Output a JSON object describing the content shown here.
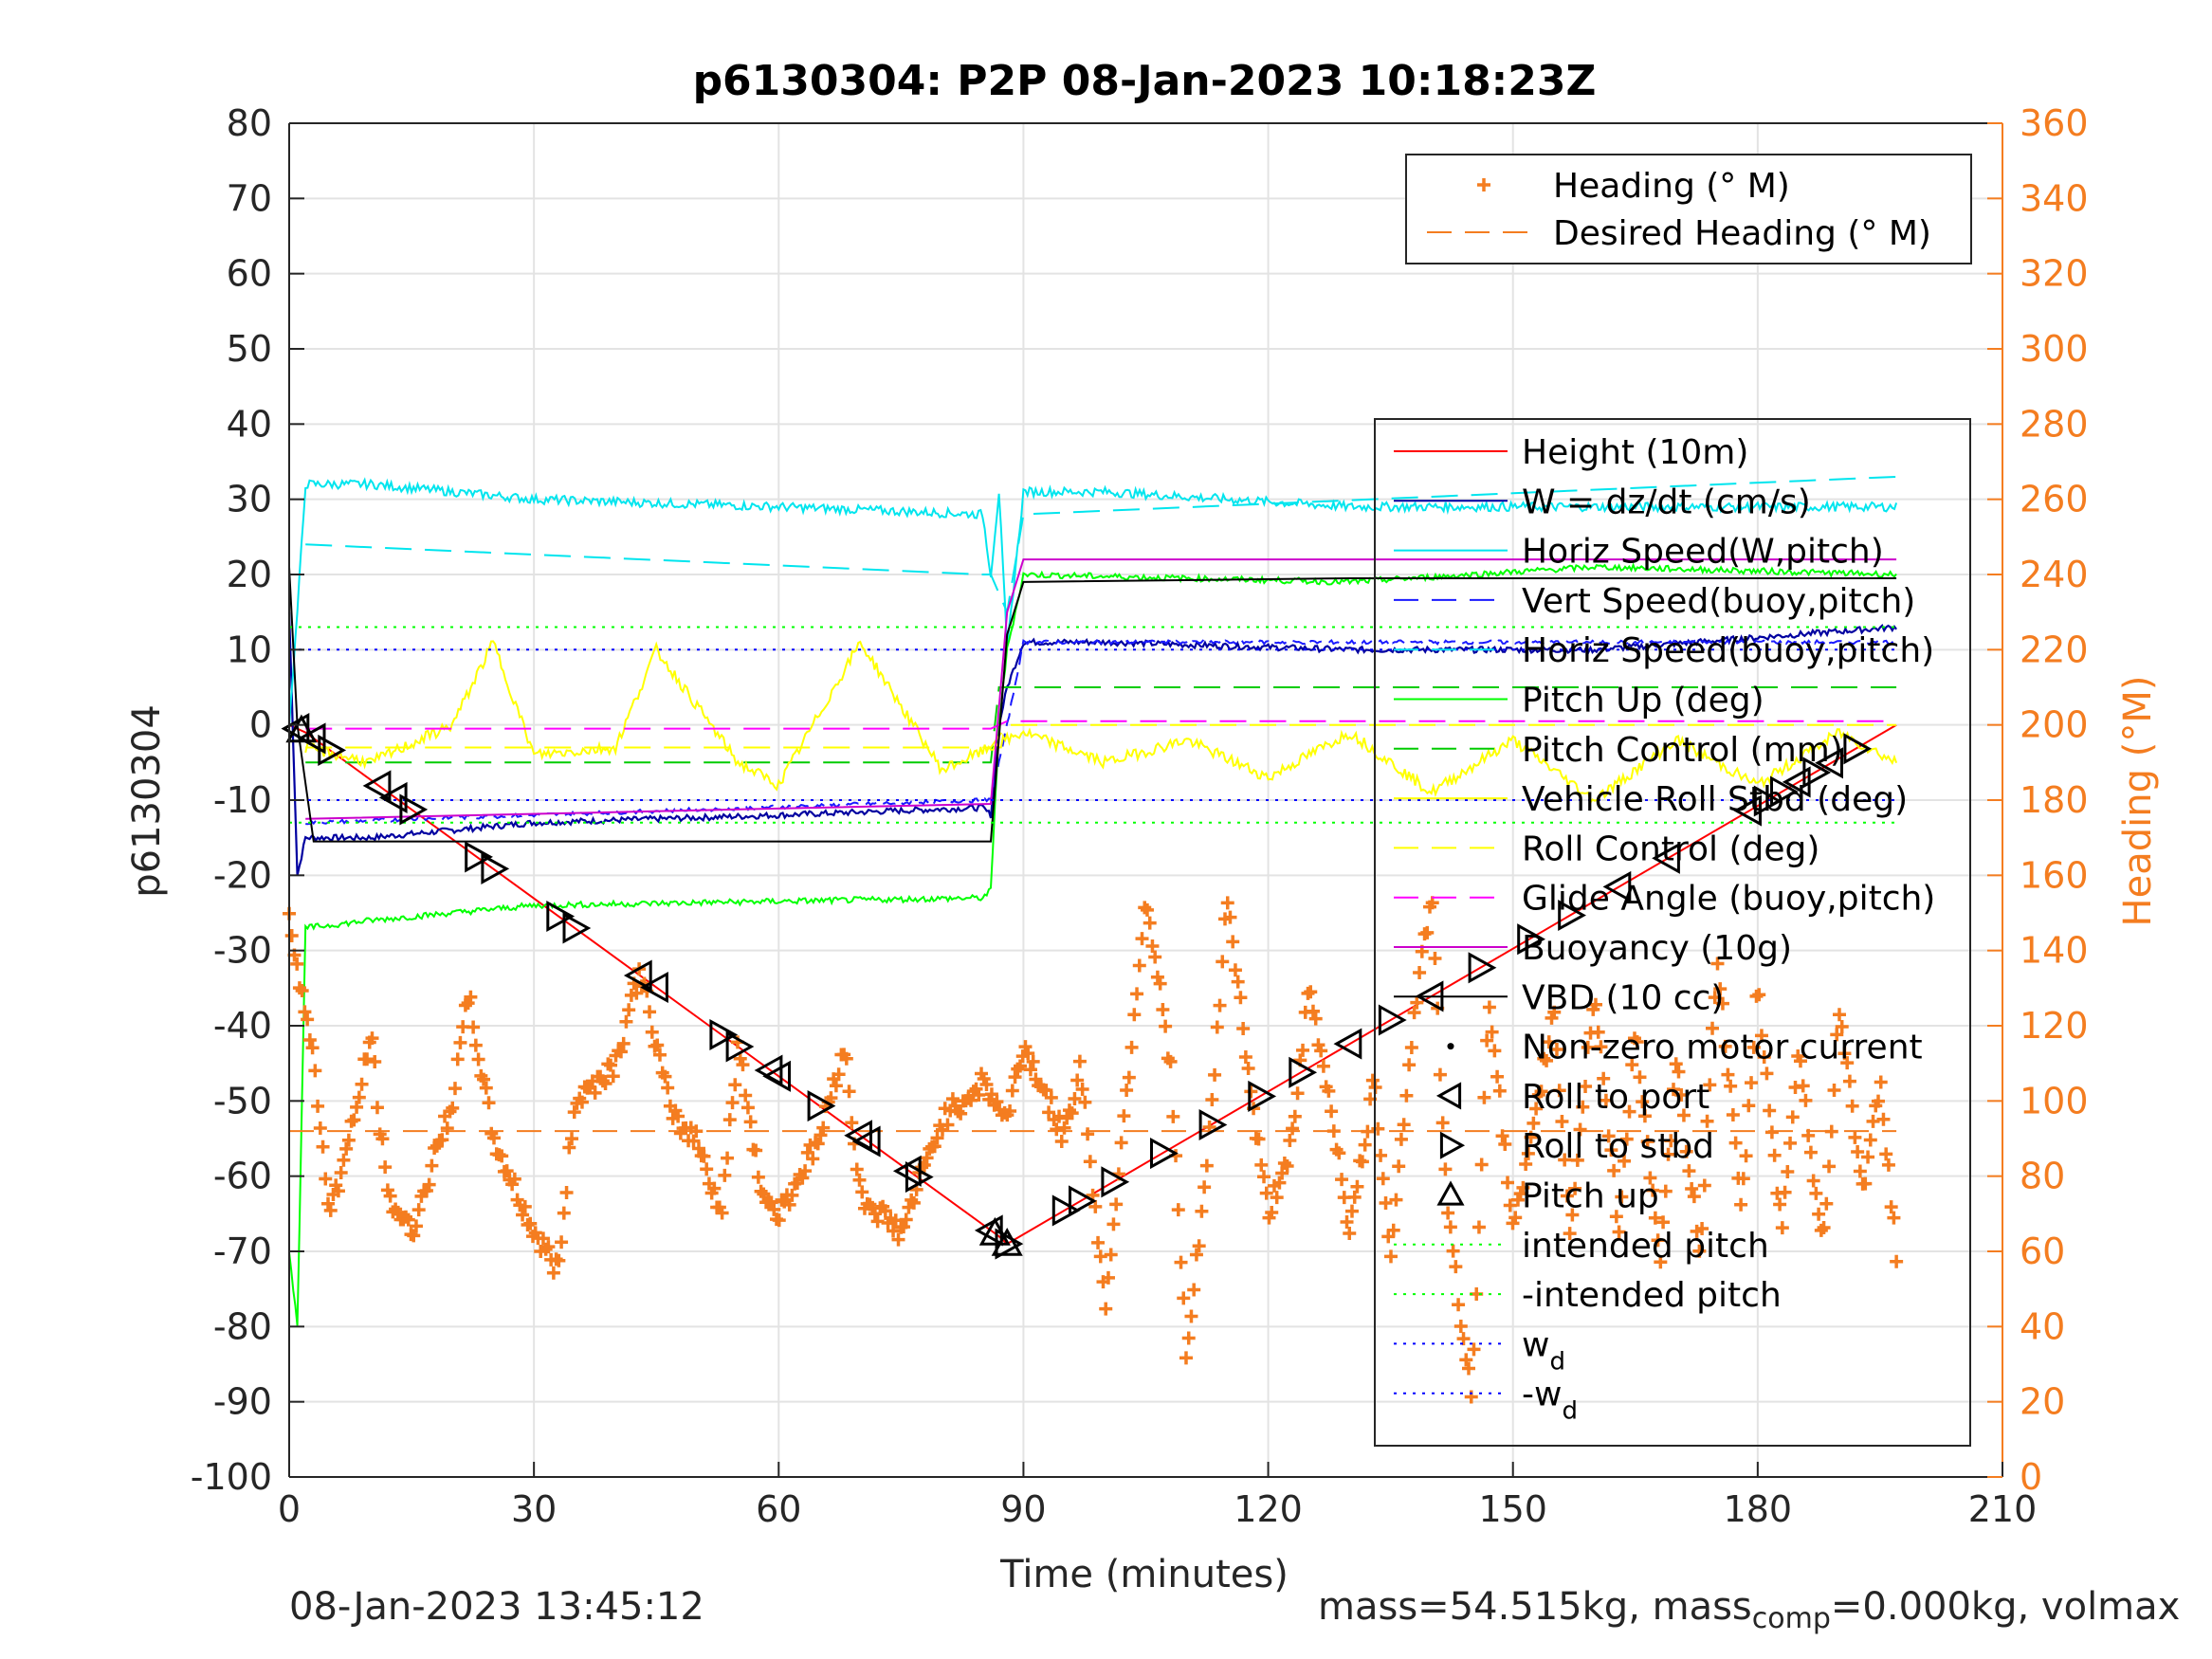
{
  "chart_data": {
    "type": "line",
    "title": "p6130304: P2P 08-Jan-2023 10:18:23Z",
    "xlabel": "Time (minutes)",
    "ylabel_left": "p6130304",
    "ylabel_right": "Heading (°M)",
    "xlim": [
      0,
      210
    ],
    "ylim_left": [
      -100,
      80
    ],
    "ylim_right": [
      0,
      360
    ],
    "xticks": [
      0,
      30,
      60,
      90,
      120,
      150,
      180,
      210
    ],
    "yticks_left": [
      80,
      70,
      60,
      50,
      40,
      30,
      20,
      10,
      0,
      -10,
      -20,
      -30,
      -40,
      -50,
      -60,
      -70,
      -80,
      -90,
      -100
    ],
    "yticks_right": [
      360,
      340,
      320,
      300,
      280,
      260,
      240,
      220,
      200,
      180,
      160,
      140,
      120,
      100,
      80,
      60,
      40,
      20,
      0
    ],
    "grid": true,
    "legend_heading": [
      {
        "name": "Heading (° M)",
        "color": "#f47d20",
        "style": "plus"
      },
      {
        "name": "Desired Heading (° M)",
        "color": "#f47d20",
        "style": "dashed"
      }
    ],
    "legend_main": [
      {
        "name": "Height (10m)",
        "color": "#ff0000",
        "style": "solid"
      },
      {
        "name": "W = dz/dt (cm/s)",
        "color": "#0000a0",
        "style": "solid"
      },
      {
        "name": "Horiz Speed(W,pitch)",
        "color": "#00e5ee",
        "style": "solid"
      },
      {
        "name": "Vert Speed(buoy,pitch)",
        "color": "#1a1aff",
        "style": "dashed"
      },
      {
        "name": "Horiz Speed(buoy,pitch)",
        "color": "#00e5ee",
        "style": "dashed"
      },
      {
        "name": "Pitch Up (deg)",
        "color": "#00ff00",
        "style": "solid"
      },
      {
        "name": "Pitch Control (mm)",
        "color": "#00cc00",
        "style": "dashed"
      },
      {
        "name": "Vehicle Roll Stbd (deg)",
        "color": "#ffff00",
        "style": "solid"
      },
      {
        "name": "Roll Control (deg)",
        "color": "#ffff00",
        "style": "dashed"
      },
      {
        "name": "Glide Angle (buoy,pitch)",
        "color": "#ff00ff",
        "style": "dashed"
      },
      {
        "name": "Buoyancy (10g)",
        "color": "#cc00cc",
        "style": "solid"
      },
      {
        "name": "VBD (10 cc)",
        "color": "#000000",
        "style": "solid"
      },
      {
        "name": "Non-zero motor current",
        "color": "#000000",
        "style": "dot"
      },
      {
        "name": "Roll to port",
        "color": "#000000",
        "style": "tri-left"
      },
      {
        "name": "Roll to stbd",
        "color": "#000000",
        "style": "tri-right"
      },
      {
        "name": "Pitch up",
        "color": "#000000",
        "style": "tri-up"
      },
      {
        "name": "intended pitch",
        "color": "#00ff00",
        "style": "dotted"
      },
      {
        "name": "-intended pitch",
        "color": "#00ff00",
        "style": "dotted"
      },
      {
        "name": "w",
        "sub": "d",
        "color": "#0000ff",
        "style": "dotted"
      },
      {
        "name": "-w",
        "sub": "d",
        "color": "#0000ff",
        "style": "dotted"
      }
    ],
    "series": [
      {
        "name": "Height (10m)",
        "x": [
          0,
          2,
          87,
          88,
          197
        ],
        "y": [
          0,
          -1,
          -68,
          -69,
          0
        ]
      },
      {
        "name": "W = dz/dt (cm/s)",
        "x": [
          0,
          1,
          2,
          10,
          30,
          60,
          85,
          86,
          87,
          88,
          90,
          100,
          130,
          160,
          197
        ],
        "y": [
          15,
          -20,
          -15,
          -15,
          -13,
          -12,
          -11,
          -12,
          0,
          5,
          11,
          11,
          10,
          10,
          13
        ]
      },
      {
        "name": "Horiz Speed(W,pitch)",
        "x": [
          0,
          1,
          2,
          10,
          30,
          60,
          85,
          86,
          87,
          88,
          90,
          100,
          130,
          160,
          197
        ],
        "y": [
          0,
          15,
          32,
          32,
          30,
          29,
          28,
          20,
          31,
          10,
          31,
          31,
          29,
          29,
          29
        ]
      },
      {
        "name": "Vert Speed(buoy,pitch)",
        "x": [
          2,
          85,
          86,
          88,
          90,
          197
        ],
        "y": [
          -13,
          -10,
          -10,
          0,
          11,
          11
        ]
      },
      {
        "name": "Horiz Speed(buoy,pitch)",
        "x": [
          2,
          85,
          86,
          88,
          90,
          197
        ],
        "y": [
          24,
          20,
          20,
          15,
          28,
          33
        ]
      },
      {
        "name": "Pitch Up (deg)",
        "x": [
          0,
          1,
          2,
          10,
          30,
          85,
          86,
          87,
          88,
          90,
          130,
          160,
          197
        ],
        "y": [
          -70,
          -80,
          -27,
          -26,
          -24,
          -23,
          -22,
          0,
          10,
          20,
          19,
          21,
          20
        ]
      },
      {
        "name": "Pitch Control (mm)",
        "x": [
          2,
          86,
          87,
          197
        ],
        "y": [
          -5,
          -5,
          5,
          5
        ]
      },
      {
        "name": "Vehicle Roll Stbd (deg)",
        "x": [
          2,
          10,
          20,
          25,
          30,
          40,
          45,
          55,
          60,
          70,
          80,
          86,
          90,
          100,
          110,
          120,
          130,
          140,
          150,
          160,
          170,
          180,
          190,
          197
        ],
        "y": [
          -3,
          -5,
          0,
          11,
          -4,
          -3,
          10,
          -5,
          -8,
          11,
          -6,
          -3,
          -1,
          -5,
          -2,
          -7,
          -1,
          -9,
          -2,
          -10,
          -2,
          -8,
          -1,
          -5
        ]
      },
      {
        "name": "Roll Control (deg)",
        "x": [
          2,
          86,
          88,
          197
        ],
        "y": [
          -3,
          -3,
          0,
          0
        ]
      },
      {
        "name": "Glide Angle (buoy,pitch)",
        "x": [
          2,
          86,
          88,
          197
        ],
        "y": [
          -0.5,
          -0.5,
          0.5,
          0.5
        ]
      },
      {
        "name": "Buoyancy (10g)",
        "x": [
          2,
          86,
          88,
          90,
          197
        ],
        "y": [
          -12.5,
          -10.5,
          15,
          22,
          22
        ]
      },
      {
        "name": "VBD (10 cc)",
        "x": [
          0,
          1,
          3,
          85,
          86,
          88,
          90,
          130,
          163,
          164,
          197
        ],
        "y": [
          21,
          0,
          -15.5,
          -15.5,
          -15.5,
          12,
          19,
          19.5,
          19.5,
          19.5,
          19.5
        ]
      },
      {
        "name": "Heading (° M)",
        "note": "oscillating about desired heading",
        "x": [
          0,
          3,
          5,
          8,
          10,
          12,
          15,
          20,
          22,
          25,
          30,
          33,
          35,
          40,
          43,
          47,
          50,
          53,
          55,
          58,
          60,
          65,
          68,
          70,
          75,
          80,
          85,
          88,
          90,
          95,
          97,
          100,
          103,
          105,
          108,
          110,
          113,
          115,
          118,
          120,
          123,
          125,
          128,
          130,
          133,
          135,
          138,
          140,
          142,
          145,
          147,
          150,
          152,
          155,
          157,
          160,
          163,
          165,
          168,
          170,
          173,
          175,
          178,
          180,
          183,
          185,
          188,
          190,
          193,
          195,
          197
        ],
        "y": [
          150,
          110,
          70,
          95,
          118,
          75,
          65,
          100,
          128,
          90,
          65,
          55,
          100,
          110,
          135,
          95,
          90,
          70,
          115,
          75,
          70,
          90,
          115,
          75,
          65,
          95,
          105,
          95,
          115,
          90,
          110,
          45,
          110,
          155,
          110,
          30,
          95,
          155,
          100,
          70,
          90,
          130,
          95,
          65,
          105,
          60,
          125,
          155,
          70,
          20,
          130,
          65,
          85,
          125,
          65,
          130,
          65,
          120,
          55,
          110,
          60,
          140,
          70,
          130,
          65,
          115,
          60,
          125,
          75,
          105,
          60
        ]
      },
      {
        "name": "Desired Heading (° M)",
        "x": [
          0,
          197
        ],
        "y": [
          92,
          92
        ]
      },
      {
        "name": "intended pitch",
        "x": [
          0,
          197
        ],
        "y": [
          13,
          13
        ]
      },
      {
        "name": "-intended pitch",
        "x": [
          0,
          197
        ],
        "y": [
          -13,
          -13
        ]
      },
      {
        "name": "w_d",
        "x": [
          0,
          197
        ],
        "y": [
          10,
          10
        ]
      },
      {
        "name": "-w_d",
        "x": [
          0,
          197
        ],
        "y": [
          -10,
          -10
        ]
      }
    ],
    "roll_markers": [
      {
        "t": 1,
        "dir": "port"
      },
      {
        "t": 3,
        "dir": "port"
      },
      {
        "t": 5,
        "dir": "stbd"
      },
      {
        "t": 11,
        "dir": "port"
      },
      {
        "t": 13,
        "dir": "port"
      },
      {
        "t": 15,
        "dir": "stbd"
      },
      {
        "t": 23,
        "dir": "stbd"
      },
      {
        "t": 25,
        "dir": "stbd"
      },
      {
        "t": 33,
        "dir": "stbd"
      },
      {
        "t": 35,
        "dir": "stbd"
      },
      {
        "t": 43,
        "dir": "port"
      },
      {
        "t": 45,
        "dir": "port"
      },
      {
        "t": 53,
        "dir": "stbd"
      },
      {
        "t": 55,
        "dir": "stbd"
      },
      {
        "t": 59,
        "dir": "port"
      },
      {
        "t": 60,
        "dir": "port"
      },
      {
        "t": 65,
        "dir": "stbd"
      },
      {
        "t": 70,
        "dir": "port"
      },
      {
        "t": 71,
        "dir": "port"
      },
      {
        "t": 76,
        "dir": "port"
      },
      {
        "t": 77,
        "dir": "stbd"
      },
      {
        "t": 86,
        "dir": "port"
      },
      {
        "t": 88,
        "dir": "stbd"
      },
      {
        "t": 95,
        "dir": "stbd"
      },
      {
        "t": 97,
        "dir": "stbd"
      },
      {
        "t": 101,
        "dir": "stbd"
      },
      {
        "t": 107,
        "dir": "stbd"
      },
      {
        "t": 113,
        "dir": "stbd"
      },
      {
        "t": 119,
        "dir": "stbd"
      },
      {
        "t": 124,
        "dir": "stbd"
      },
      {
        "t": 130,
        "dir": "port"
      },
      {
        "t": 135,
        "dir": "stbd"
      },
      {
        "t": 140,
        "dir": "port"
      },
      {
        "t": 146,
        "dir": "stbd"
      },
      {
        "t": 152,
        "dir": "stbd"
      },
      {
        "t": 157,
        "dir": "stbd"
      },
      {
        "t": 163,
        "dir": "port"
      },
      {
        "t": 169,
        "dir": "port"
      },
      {
        "t": 179,
        "dir": "port"
      },
      {
        "t": 181,
        "dir": "stbd"
      },
      {
        "t": 183,
        "dir": "stbd"
      },
      {
        "t": 185,
        "dir": "port"
      },
      {
        "t": 187,
        "dir": "stbd"
      },
      {
        "t": 189,
        "dir": "port"
      },
      {
        "t": 192,
        "dir": "stbd"
      }
    ],
    "pitch_markers": [
      1.5,
      86.5,
      88
    ]
  },
  "footer": {
    "date": "08-Jan-2023 13:45:12",
    "mass_text": "mass=54.515kg, mass",
    "mass_sub": "comp",
    "mass_rest": "=0.000kg, volmax"
  }
}
